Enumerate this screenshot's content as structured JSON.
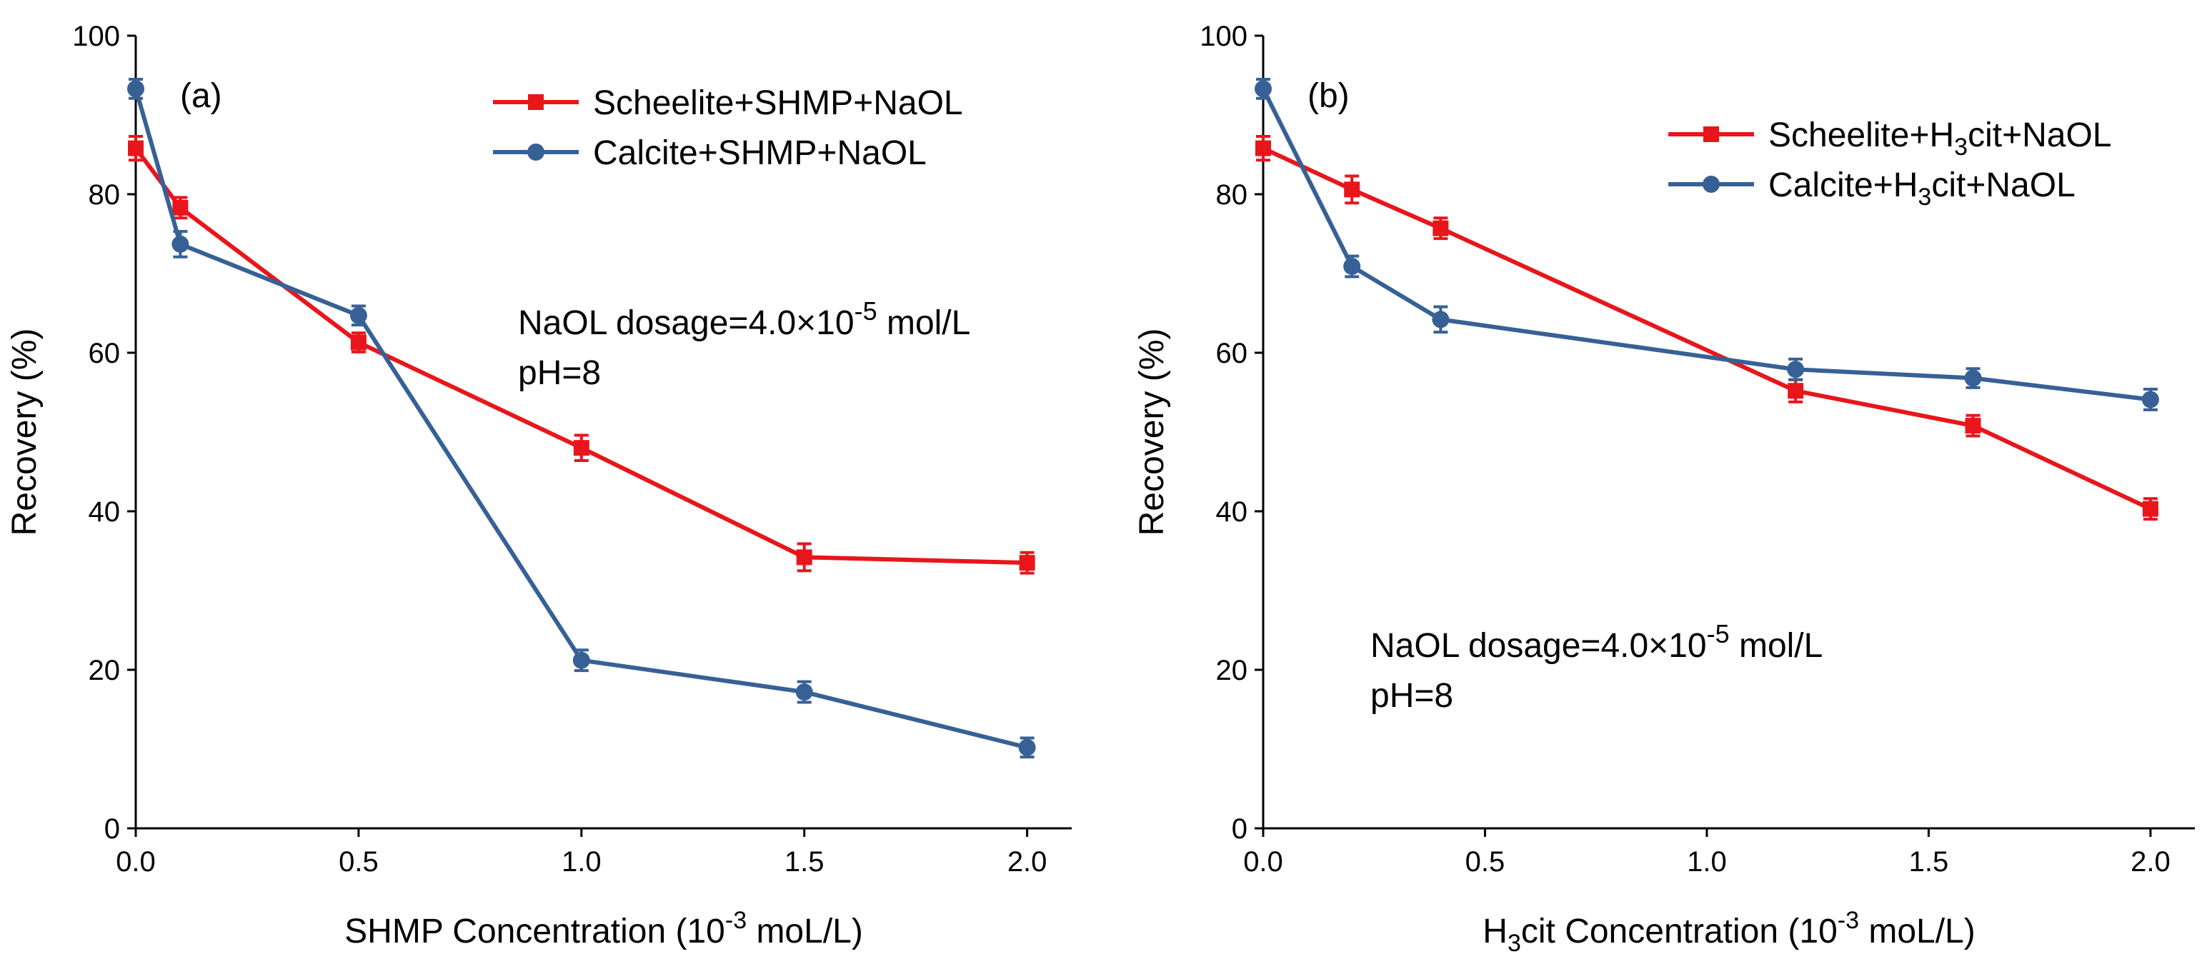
{
  "chart_data": [
    {
      "type": "line",
      "panel_label": "(a)",
      "xlabel": {
        "prefix": "SHMP Concentration (10",
        "sup": "-3",
        "suffix": " moL/L)"
      },
      "ylabel": "Recovery (%)",
      "xlim": [
        0,
        2.1
      ],
      "ylim": [
        0,
        100
      ],
      "xticks": [
        0,
        0.5,
        1.0,
        1.5,
        2.0
      ],
      "xtick_labels": [
        "0.0",
        "0.5",
        "1.0",
        "1.5",
        "2.0"
      ],
      "yticks": [
        0,
        20,
        40,
        60,
        80,
        100
      ],
      "ytick_labels": [
        "0",
        "20",
        "40",
        "60",
        "80",
        "100"
      ],
      "grid": false,
      "legend_position": "top-right",
      "annotations": [
        {
          "prefix": "NaOL dosage=4.0×10",
          "sup": "-5",
          "suffix": " mol/L"
        },
        {
          "prefix": "pH=8",
          "sup": "",
          "suffix": ""
        }
      ],
      "series": [
        {
          "name": {
            "prefix": "Scheelite+SHMP+NaOL",
            "sub": "",
            "suffix": ""
          },
          "color": "#e8161b",
          "marker": "square",
          "x": [
            0,
            0.1,
            0.5,
            1.0,
            1.5,
            2.0
          ],
          "y": [
            85.8,
            78.3,
            61.3,
            48.0,
            34.2,
            33.5
          ],
          "err": [
            1.5,
            1.3,
            1.2,
            1.6,
            1.7,
            1.3
          ]
        },
        {
          "name": {
            "prefix": "Calcite+SHMP+NaOL",
            "sub": "",
            "suffix": ""
          },
          "color": "#376196",
          "marker": "circle",
          "x": [
            0,
            0.1,
            0.5,
            1.0,
            1.5,
            2.0
          ],
          "y": [
            93.3,
            73.7,
            64.7,
            21.2,
            17.2,
            10.2
          ],
          "err": [
            1.2,
            1.6,
            1.2,
            1.3,
            1.3,
            1.2
          ]
        }
      ]
    },
    {
      "type": "line",
      "panel_label": "(b)",
      "xlabel": {
        "prefix": "H",
        "sub": "3",
        "mid": "cit Concentration (10",
        "sup": "-3",
        "suffix": " moL/L)"
      },
      "ylabel": "Recovery (%)",
      "xlim": [
        0,
        2.1
      ],
      "ylim": [
        0,
        100
      ],
      "xticks": [
        0,
        0.5,
        1.0,
        1.5,
        2.0
      ],
      "xtick_labels": [
        "0.0",
        "0.5",
        "1.0",
        "1.5",
        "2.0"
      ],
      "yticks": [
        0,
        20,
        40,
        60,
        80,
        100
      ],
      "ytick_labels": [
        "0",
        "20",
        "40",
        "60",
        "80",
        "100"
      ],
      "grid": false,
      "legend_position": "top-right",
      "annotations": [
        {
          "prefix": "NaOL dosage=4.0×10",
          "sup": "-5",
          "suffix": " mol/L"
        },
        {
          "prefix": "pH=8",
          "sup": "",
          "suffix": ""
        }
      ],
      "series": [
        {
          "name": {
            "prefix": "Scheelite+H",
            "sub": "3",
            "suffix": "cit+NaOL"
          },
          "color": "#e8161b",
          "marker": "square",
          "x": [
            0,
            0.2,
            0.4,
            1.2,
            1.6,
            2.0
          ],
          "y": [
            85.8,
            80.6,
            75.7,
            55.2,
            50.8,
            40.3
          ],
          "err": [
            1.5,
            1.7,
            1.3,
            1.4,
            1.3,
            1.3
          ]
        },
        {
          "name": {
            "prefix": "Calcite+H",
            "sub": "3",
            "suffix": "cit+NaOL"
          },
          "color": "#376196",
          "marker": "circle",
          "x": [
            0,
            0.2,
            0.4,
            1.2,
            1.6,
            2.0
          ],
          "y": [
            93.3,
            70.9,
            64.2,
            57.9,
            56.8,
            54.1
          ],
          "err": [
            1.2,
            1.3,
            1.6,
            1.3,
            1.2,
            1.3
          ]
        }
      ]
    }
  ]
}
